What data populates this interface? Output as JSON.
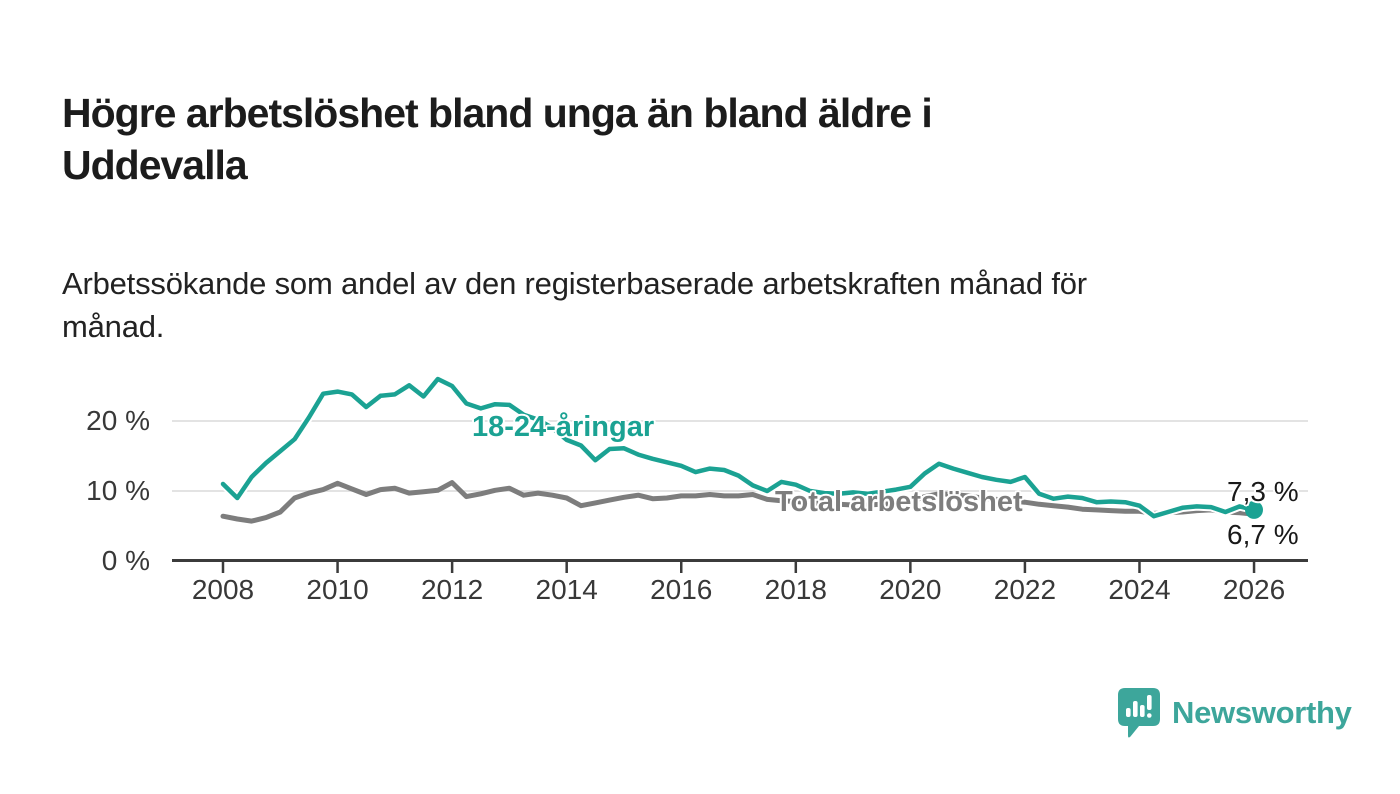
{
  "header": {
    "title_lines": [
      "Högre arbetslöshet bland unga än bland äldre i",
      "Uddevalla"
    ],
    "subtitle_lines": [
      "Arbetssökande som andel av den registerbaserade arbetskraften månad för",
      "månad."
    ]
  },
  "chart_data": {
    "type": "line",
    "title": "Högre arbetslöshet bland unga än bland äldre i Uddevalla",
    "subtitle": "Arbetssökande som andel av den registerbaserade arbetskraften månad för månad.",
    "unit": "%",
    "grid": "horizontal",
    "legend_position": "inline-labels",
    "x_start_year": 2008,
    "x_step_years": 0.25,
    "xlim": [
      2007.1,
      2026.95
    ],
    "ylim": [
      0,
      27.5
    ],
    "x_tick_years": [
      2008,
      2010,
      2012,
      2014,
      2016,
      2018,
      2020,
      2022,
      2024,
      2026
    ],
    "y_ticks": [
      {
        "value": 0,
        "label": "0 %"
      },
      {
        "value": 10,
        "label": "10 %"
      },
      {
        "value": 20,
        "label": "20 %"
      }
    ],
    "series": [
      {
        "name": "Total arbetslöshet",
        "color": "#7d7d7d",
        "end_label": "6,7 %",
        "end_value": 6.7,
        "values": [
          6.4,
          6.0,
          5.7,
          6.2,
          7.0,
          9.0,
          9.7,
          10.2,
          11.1,
          10.3,
          9.5,
          10.2,
          10.4,
          9.7,
          9.9,
          10.1,
          11.2,
          9.2,
          9.6,
          10.1,
          10.4,
          9.4,
          9.7,
          9.4,
          9.0,
          7.9,
          8.3,
          8.7,
          9.1,
          9.4,
          8.9,
          9.0,
          9.3,
          9.3,
          9.5,
          9.3,
          9.3,
          9.5,
          8.8,
          8.6,
          8.5,
          8.3,
          8.2,
          8.1,
          8.0,
          8.0,
          8.1,
          8.2,
          8.4,
          9.2,
          9.6,
          9.5,
          9.3,
          9.0,
          8.8,
          8.6,
          8.4,
          8.1,
          7.9,
          7.7,
          7.4,
          7.3,
          7.2,
          7.1,
          7.1,
          6.8,
          6.9,
          7.0,
          7.2,
          7.3,
          7.0,
          6.9,
          6.7
        ]
      },
      {
        "name": "18-24-åringar",
        "color": "#1ba293",
        "end_label": "7,3 %",
        "end_value": 7.3,
        "has_end_dot": true,
        "values": [
          11.0,
          9.0,
          12.0,
          14.0,
          15.7,
          17.4,
          20.5,
          23.9,
          24.2,
          23.8,
          22.0,
          23.6,
          23.8,
          25.1,
          23.5,
          26.0,
          25.0,
          22.5,
          21.8,
          22.4,
          22.3,
          20.9,
          20.2,
          19.0,
          17.3,
          16.5,
          14.4,
          16.0,
          16.1,
          15.2,
          14.6,
          14.1,
          13.6,
          12.7,
          13.2,
          13.0,
          12.2,
          10.8,
          10.0,
          11.3,
          10.9,
          10.0,
          9.7,
          9.6,
          9.8,
          9.6,
          9.9,
          10.2,
          10.6,
          12.5,
          13.9,
          13.2,
          12.6,
          12.0,
          11.6,
          11.3,
          12.0,
          9.6,
          8.9,
          9.2,
          9.0,
          8.4,
          8.5,
          8.4,
          7.9,
          6.4,
          7.0,
          7.6,
          7.8,
          7.7,
          7.0,
          7.8,
          7.3
        ]
      }
    ],
    "axis_color": "#3b3b3b",
    "gridline_color": "#dadada"
  },
  "footer": {
    "brand": "Newsworthy",
    "brand_color": "#3da69b"
  }
}
